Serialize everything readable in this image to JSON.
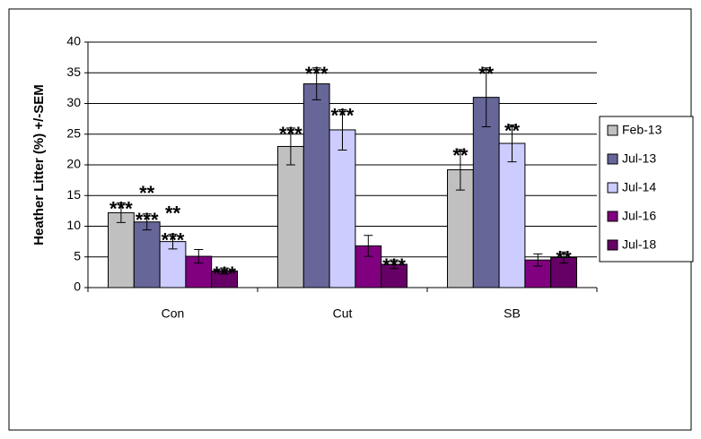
{
  "chart_data": {
    "type": "bar",
    "ylabel": "Heather Litter (%) +/-SEM",
    "categories": [
      "Con",
      "Cut",
      "SB"
    ],
    "ylim": [
      0,
      40
    ],
    "yticks": [
      0,
      5,
      10,
      15,
      20,
      25,
      30,
      35,
      40
    ],
    "grid": true,
    "legend": "right",
    "series": [
      {
        "name": "Feb-13",
        "color": "#c0c0c0",
        "values": [
          12.2,
          23.0,
          19.2
        ],
        "errors": [
          1.6,
          3.0,
          3.3
        ],
        "annotations": [
          [
            {
              "text": "***",
              "color": "#404040"
            }
          ],
          [
            {
              "text": "***",
              "color": "#ff0000"
            }
          ],
          [
            {
              "text": "**",
              "color": "#008000"
            }
          ]
        ]
      },
      {
        "name": "Jul-13",
        "color": "#666699",
        "values": [
          10.7,
          33.2,
          31.0
        ],
        "errors": [
          1.3,
          2.6,
          4.8
        ],
        "annotations": [
          [
            {
              "text": "***",
              "color": "#33ee33"
            },
            {
              "text": "**",
              "color": "#f08020"
            }
          ],
          [
            {
              "text": "***",
              "color": "#33ee33"
            }
          ],
          [
            {
              "text": "**",
              "color": "#f08020"
            }
          ]
        ]
      },
      {
        "name": "Jul-14",
        "color": "#ccccff",
        "values": [
          7.5,
          25.7,
          23.5
        ],
        "errors": [
          1.2,
          3.3,
          3.0
        ],
        "annotations": [
          [
            {
              "text": "***",
              "color": "#0000ff"
            },
            {
              "text": "**",
              "color": "#ff0000"
            }
          ],
          [
            {
              "text": "***",
              "color": "#0000ff"
            }
          ],
          [
            {
              "text": "**",
              "color": "#ff0000"
            }
          ]
        ]
      },
      {
        "name": "Jul-16",
        "color": "#800080",
        "values": [
          5.1,
          6.8,
          4.5
        ],
        "errors": [
          1.1,
          1.7,
          1.0
        ],
        "annotations": [
          null,
          null,
          null
        ]
      },
      {
        "name": "Jul-18",
        "color": "#660066",
        "values": [
          2.7,
          3.8,
          4.9
        ],
        "errors": [
          0.5,
          0.7,
          0.9
        ],
        "annotations": [
          [
            {
              "text": "***",
              "color": "#404040"
            }
          ],
          [
            {
              "text": "***",
              "color": "#ff0000"
            }
          ],
          [
            {
              "text": "**",
              "color": "#008000"
            }
          ]
        ]
      }
    ]
  }
}
